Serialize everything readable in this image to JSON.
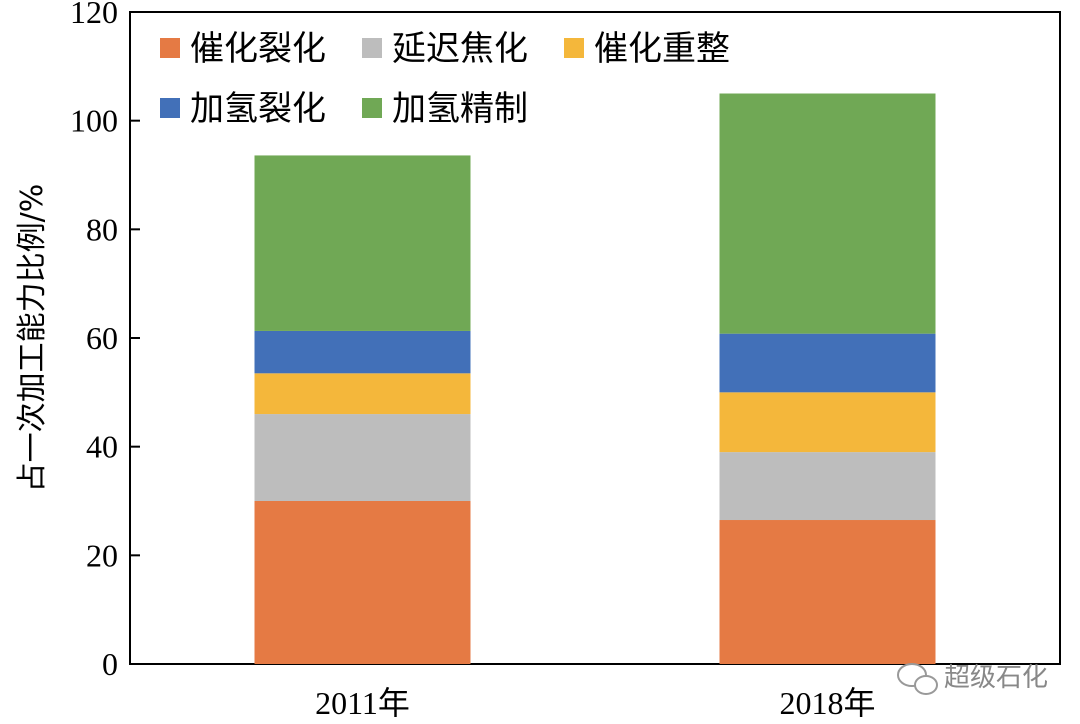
{
  "chart_data": {
    "type": "bar",
    "stacked": true,
    "categories": [
      "2011年",
      "2018年"
    ],
    "series": [
      {
        "name": "催化裂化",
        "color": "#E57A44",
        "values": [
          30,
          26.5
        ]
      },
      {
        "name": "延迟焦化",
        "color": "#BDBDBD",
        "values": [
          16,
          12.5
        ]
      },
      {
        "name": "催化重整",
        "color": "#F4B73B",
        "values": [
          7.5,
          11
        ]
      },
      {
        "name": "加氢裂化",
        "color": "#4270B8",
        "values": [
          7.8,
          10.8
        ]
      },
      {
        "name": "加氢精制",
        "color": "#70A855",
        "values": [
          32.3,
          44.2
        ]
      }
    ],
    "xlabel": "",
    "ylabel": "占一次加工能力比例/%",
    "ylim": [
      0,
      120
    ],
    "yticks": [
      0,
      20,
      40,
      60,
      80,
      100,
      120
    ],
    "grid": false,
    "legend_position": "top-left"
  },
  "watermark": {
    "text": "超级石化",
    "icon": "wechat-icon"
  }
}
